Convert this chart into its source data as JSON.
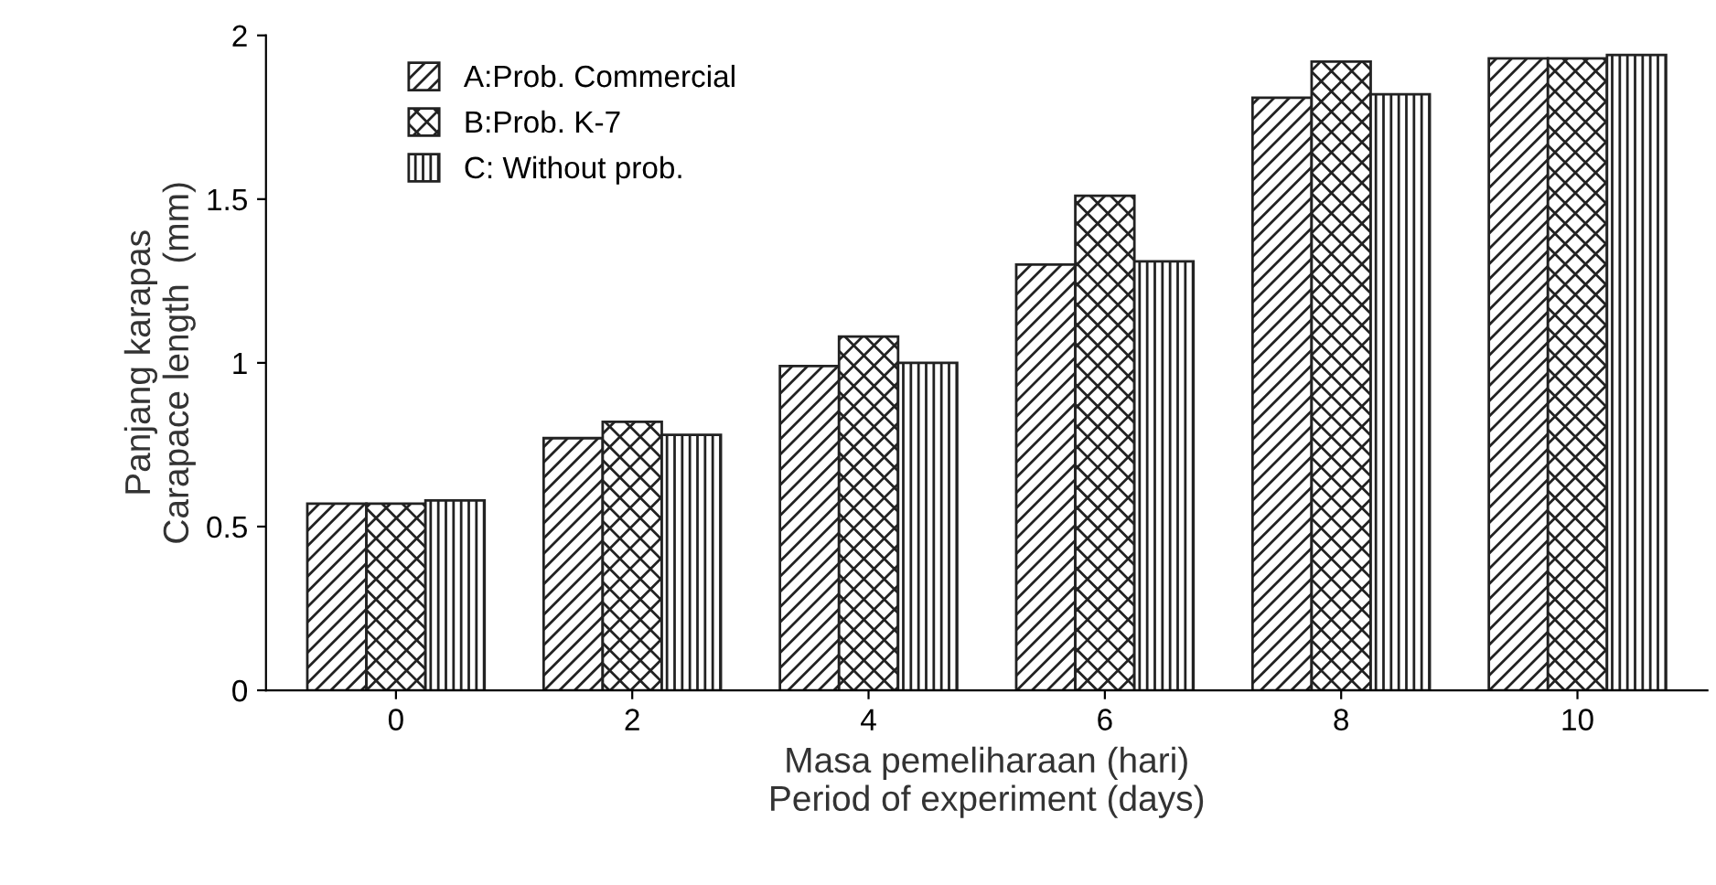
{
  "chart_data": {
    "type": "bar",
    "categories": [
      "0",
      "2",
      "4",
      "6",
      "8",
      "10"
    ],
    "series": [
      {
        "name": "A:Prob. Commercial",
        "color": "#222222",
        "values": [
          0.57,
          0.77,
          0.99,
          1.3,
          1.81,
          1.93
        ]
      },
      {
        "name": "B:Prob. K-7",
        "color": "#222222",
        "values": [
          0.57,
          0.82,
          1.08,
          1.51,
          1.92,
          1.93
        ]
      },
      {
        "name": "C: Without prob.",
        "color": "#222222",
        "values": [
          0.58,
          0.78,
          1.0,
          1.31,
          1.82,
          1.94
        ]
      }
    ],
    "xlabel": "Masa pemeliharaan (hari)\nPeriod of experiment (days)",
    "ylabel": "Panjang karapas\nCarapace length  (mm)",
    "ylim": [
      0,
      2
    ],
    "yticks": [
      0,
      0.5,
      1,
      1.5,
      2
    ],
    "grid": false,
    "legend": "top left"
  }
}
